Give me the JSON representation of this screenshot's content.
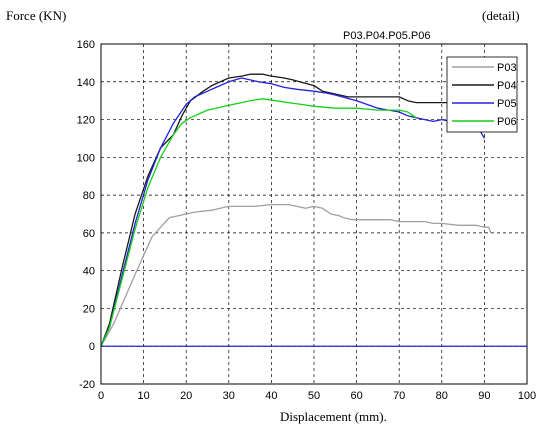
{
  "chart_data": {
    "type": "line",
    "title": "P03.P04.P05.P06",
    "ylabel": "Force (KN)",
    "xlabel": "Displacement (mm).",
    "note": "(detail)",
    "xlim": [
      0,
      100
    ],
    "ylim": [
      -20,
      160
    ],
    "xticks": [
      0,
      10,
      20,
      30,
      40,
      50,
      60,
      70,
      80,
      90,
      100
    ],
    "yticks": [
      -20,
      0,
      20,
      40,
      60,
      80,
      100,
      120,
      140,
      160
    ],
    "grid": true,
    "legend_position": "top-right",
    "series": [
      {
        "name": "P03",
        "color": "#a0a0a0",
        "x": [
          0,
          3,
          8,
          12,
          16,
          22,
          26,
          28,
          30,
          36,
          40,
          44,
          46,
          48,
          50,
          52,
          54,
          56,
          57,
          59,
          64,
          68,
          70,
          72,
          74,
          76,
          78,
          80,
          84,
          88,
          90,
          91,
          91.5
        ],
        "y": [
          0,
          12,
          38,
          58,
          68,
          71,
          72,
          73,
          74,
          74,
          75,
          75,
          74,
          73,
          74,
          73,
          70,
          69,
          68,
          67,
          67,
          67,
          66,
          66,
          66,
          66,
          65,
          65,
          64,
          64,
          63,
          63,
          60
        ]
      },
      {
        "name": "P04",
        "color": "#1a1a1a",
        "x": [
          0,
          2,
          5,
          8,
          11,
          14,
          17,
          19,
          21,
          24,
          26,
          28,
          30,
          33,
          35,
          38,
          40,
          43,
          45,
          50,
          52,
          54,
          56,
          58,
          62,
          66,
          70,
          72,
          74,
          76,
          78,
          82,
          84,
          88,
          90,
          91
        ],
        "y": [
          0,
          12,
          42,
          70,
          90,
          105,
          112,
          122,
          130,
          135,
          138,
          140,
          142,
          143,
          144,
          144,
          143,
          142,
          141,
          138,
          135,
          134,
          133,
          132,
          132,
          132,
          132,
          130,
          129,
          129,
          129,
          129,
          129,
          128,
          128,
          125
        ]
      },
      {
        "name": "P05",
        "color": "#2222dd",
        "x": [
          0,
          2,
          5,
          8,
          11,
          14,
          17,
          20,
          22,
          25,
          27,
          30,
          33,
          35,
          37,
          40,
          43,
          46,
          50,
          53,
          55,
          60,
          65,
          70,
          72,
          74,
          76,
          78,
          80,
          82,
          85,
          88,
          90
        ],
        "y": [
          0,
          10,
          38,
          65,
          88,
          105,
          118,
          128,
          132,
          135,
          137,
          140,
          142,
          141,
          140,
          139,
          137,
          136,
          135,
          134,
          133,
          130,
          126,
          124,
          122,
          121,
          120,
          119,
          120,
          119,
          119,
          118,
          110
        ]
      },
      {
        "name": "P06",
        "color": "#16d016",
        "x": [
          0,
          2,
          5,
          8,
          11,
          14,
          17,
          19,
          21,
          23,
          25,
          27,
          29,
          31,
          33,
          35,
          38,
          41,
          44,
          47,
          50,
          55,
          60,
          65,
          70,
          72,
          74
        ],
        "y": [
          0,
          10,
          36,
          62,
          84,
          100,
          112,
          118,
          121,
          123,
          125,
          126,
          127,
          128,
          129,
          130,
          131,
          130,
          129,
          128,
          127,
          126,
          126,
          125,
          125,
          124,
          121
        ]
      }
    ]
  }
}
